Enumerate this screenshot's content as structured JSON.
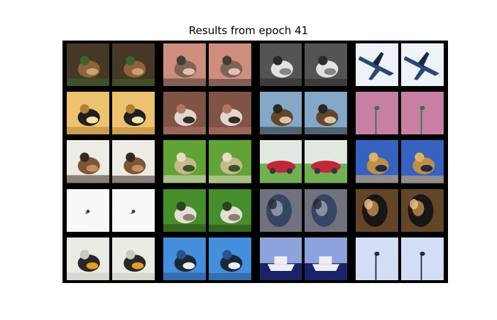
{
  "figure": {
    "title": "Results from epoch 41"
  },
  "grid": {
    "rows": 5,
    "groups_per_row": 4,
    "images_per_group": 2,
    "pairs": [
      {
        "row": 0,
        "group": 0,
        "subject": "bird-on-branch",
        "palette": [
          "#3b2a18",
          "#8a5a2c",
          "#c9a06a",
          "#2d5a1f"
        ]
      },
      {
        "row": 0,
        "group": 1,
        "subject": "bird-closeup",
        "palette": [
          "#d08a78",
          "#7a5a4a",
          "#e8c0b0",
          "#3a2e2a"
        ]
      },
      {
        "row": 0,
        "group": 2,
        "subject": "heron-grayscale",
        "palette": [
          "#4a4a4a",
          "#e6e6e6",
          "#808080",
          "#1c1c1c"
        ]
      },
      {
        "row": 0,
        "group": 3,
        "subject": "airplane",
        "palette": [
          "#f4f8ff",
          "#1e3b6e",
          "#cfe1f6",
          "#0a1a3a"
        ]
      },
      {
        "row": 1,
        "group": 0,
        "subject": "bird-silhouette-sunset",
        "palette": [
          "#f2c46a",
          "#111111",
          "#ffe7a8",
          "#b07a2a"
        ]
      },
      {
        "row": 1,
        "group": 1,
        "subject": "cat-closeup",
        "palette": [
          "#7a4a3a",
          "#e8d8d0",
          "#2a1a14",
          "#b07060"
        ]
      },
      {
        "row": 1,
        "group": 2,
        "subject": "bird-sky",
        "palette": [
          "#7fa6c8",
          "#5a3a1e",
          "#dcc9a0",
          "#1a1a1a"
        ]
      },
      {
        "row": 1,
        "group": 3,
        "subject": "bird-flowers",
        "palette": [
          "#c97aa2",
          "#2e6e3a",
          "#3a6abf",
          "#1a1a1a"
        ]
      },
      {
        "row": 2,
        "group": 0,
        "subject": "sparrow",
        "palette": [
          "#f4f0ea",
          "#7a4a2a",
          "#c68a5a",
          "#2a1a10"
        ]
      },
      {
        "row": 2,
        "group": 1,
        "subject": "bird-in-grass",
        "palette": [
          "#5aa02a",
          "#c8b88a",
          "#2a4a14",
          "#e8e0c8"
        ]
      },
      {
        "row": 2,
        "group": 2,
        "subject": "red-car",
        "palette": [
          "#c01a2a",
          "#e6ece6",
          "#2a2a2a",
          "#6ab04a"
        ]
      },
      {
        "row": 2,
        "group": 3,
        "subject": "bird-blue-sky",
        "palette": [
          "#2a5ac0",
          "#c08a3a",
          "#101a3a",
          "#e0b060"
        ]
      },
      {
        "row": 3,
        "group": 0,
        "subject": "small-bird-white",
        "palette": [
          "#ffffff",
          "#2a2a6a",
          "#f0f0f6",
          "#8a2a6a"
        ]
      },
      {
        "row": 3,
        "group": 1,
        "subject": "bird-on-grass",
        "palette": [
          "#3a8a1e",
          "#e6e2da",
          "#8a7a6a",
          "#1a3a0a"
        ]
      },
      {
        "row": 3,
        "group": 2,
        "subject": "deer-dark",
        "palette": [
          "#2a3a5a",
          "#9aa2b0",
          "#1a1a24",
          "#6a6a7a"
        ]
      },
      {
        "row": 3,
        "group": 3,
        "subject": "dog-dark",
        "palette": [
          "#0a0604",
          "#c88a4a",
          "#f4c890",
          "#5a3a1a"
        ]
      },
      {
        "row": 4,
        "group": 0,
        "subject": "oriole",
        "palette": [
          "#eef0e8",
          "#1a1a1a",
          "#e89a14",
          "#c8ccbe"
        ]
      },
      {
        "row": 4,
        "group": 1,
        "subject": "bird-on-water",
        "palette": [
          "#3a8ae0",
          "#0a1a2a",
          "#f0f4f8",
          "#1a4a8a"
        ]
      },
      {
        "row": 4,
        "group": 2,
        "subject": "boat",
        "palette": [
          "#2a3aa0",
          "#f4f4f8",
          "#0a1460",
          "#8aa0e0"
        ]
      },
      {
        "row": 4,
        "group": 3,
        "subject": "flower-pale-blue",
        "palette": [
          "#d6e2fa",
          "#1a1a3a",
          "#f4f8ff",
          "#8aa8e8"
        ]
      }
    ]
  }
}
